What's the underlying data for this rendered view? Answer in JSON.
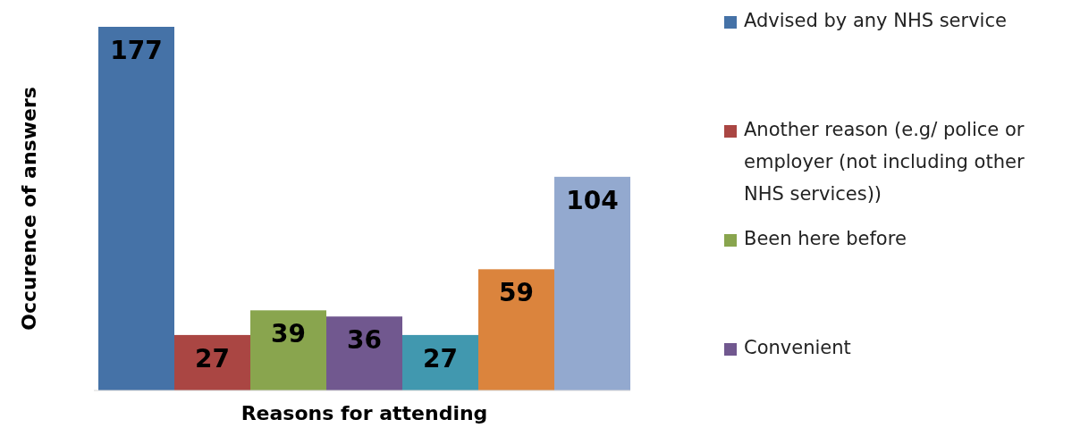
{
  "chart_data": {
    "type": "bar",
    "xlabel": "Reasons for attending",
    "ylabel": "Occurence of answers",
    "categories": [
      null
    ],
    "series": [
      {
        "name": "Advised by any NHS service",
        "color": "#4572a7",
        "values": [
          177
        ]
      },
      {
        "name": "Another reason (e.g/ police or employer (not including other NHS services))",
        "color": "#aa4643",
        "values": [
          27
        ]
      },
      {
        "name": "Been here before",
        "color": "#89a54e",
        "values": [
          39
        ]
      },
      {
        "name": "Convenient",
        "color": "#71588f",
        "values": [
          36
        ]
      },
      {
        "color": "#4198af",
        "values": [
          27
        ]
      },
      {
        "color": "#db843d",
        "values": [
          59
        ]
      },
      {
        "color": "#93a9cf",
        "values": [
          104
        ]
      }
    ],
    "data_labels": true,
    "tick_labels": false,
    "legend": "right"
  }
}
